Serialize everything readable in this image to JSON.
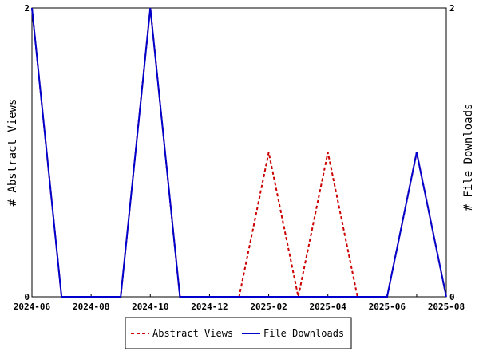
{
  "chart_data": {
    "type": "line",
    "title": "",
    "xlabel": "",
    "ylabel": "# Abstract Views",
    "y2label": "# File Downloads",
    "x_range": [
      "2024-06",
      "2025-08"
    ],
    "ylim": [
      0,
      2
    ],
    "y2lim": [
      0,
      2
    ],
    "x_tick_labels": [
      "2024-06",
      "2024-08",
      "2024-10",
      "2024-12",
      "2025-02",
      "2025-04",
      "2025-06",
      "2025-08"
    ],
    "y_tick_labels": [
      "0",
      "2"
    ],
    "y2_tick_labels": [
      "0",
      "2"
    ],
    "grid": false,
    "legend_position": "bottom",
    "x": [
      "2024-06",
      "2024-07",
      "2024-08",
      "2024-09",
      "2024-10",
      "2024-11",
      "2024-12",
      "2025-01",
      "2025-02",
      "2025-03",
      "2025-04",
      "2025-05",
      "2025-06",
      "2025-07",
      "2025-08"
    ],
    "series": [
      {
        "name": "Abstract Views",
        "axis": "left",
        "color": "#cc0000",
        "dash": true,
        "values": [
          2,
          0,
          0,
          0,
          2,
          0,
          0,
          0,
          1,
          0,
          1,
          0,
          0,
          1,
          0
        ]
      },
      {
        "name": "File Downloads",
        "axis": "right",
        "color": "#0000cc",
        "dash": false,
        "values": [
          2,
          0,
          0,
          0,
          2,
          0,
          0,
          0,
          0,
          0,
          0,
          0,
          0,
          1,
          0
        ]
      }
    ]
  }
}
